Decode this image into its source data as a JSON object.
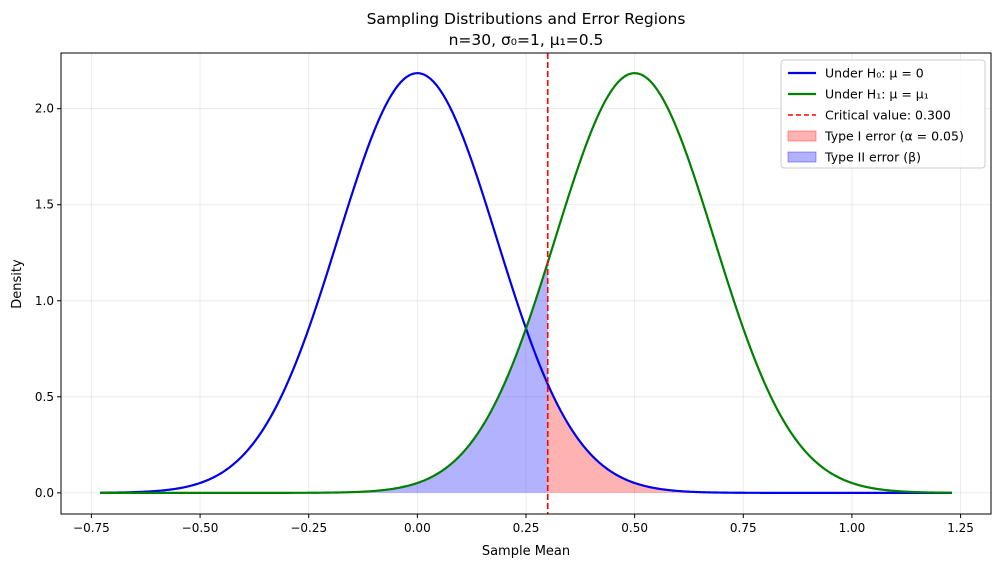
{
  "chart_data": {
    "type": "line",
    "title": "Sampling Distributions and Error Regions",
    "subtitle": "n=30, σ₀=1, μ₁=0.5",
    "xlabel": "Sample Mean",
    "ylabel": "Density",
    "xlim": [
      -0.82,
      1.32
    ],
    "ylim": [
      -0.11,
      2.29
    ],
    "x_ticks": [
      -0.75,
      -0.5,
      -0.25,
      0.0,
      0.25,
      0.5,
      0.75,
      1.0,
      1.25
    ],
    "x_tick_labels": [
      "−0.75",
      "−0.50",
      "−0.25",
      "0.00",
      "0.25",
      "0.50",
      "0.75",
      "1.00",
      "1.25"
    ],
    "y_ticks": [
      0.0,
      0.5,
      1.0,
      1.5,
      2.0
    ],
    "y_tick_labels": [
      "0.0",
      "0.5",
      "1.0",
      "1.5",
      "2.0"
    ],
    "grid": true,
    "legend_position": "top-right",
    "x_range": [
      -0.73,
      1.23
    ],
    "sample_size": 30,
    "sigma": 1,
    "series": [
      {
        "name": "Under H₀: μ = 0",
        "kind": "normal_pdf",
        "mean": 0.0,
        "color": "#0000ee"
      },
      {
        "name": "Under H₁: μ = μ₁",
        "kind": "normal_pdf",
        "mean": 0.5,
        "color": "#008000"
      }
    ],
    "critical_line": {
      "name": "Critical value: 0.300",
      "x": 0.3,
      "color": "#ff0000"
    },
    "regions": [
      {
        "name": "Type I error (α = 0.05)",
        "under": "H0",
        "from": 0.3,
        "to": 1.23,
        "color": "#ff0000",
        "alpha": 0.3
      },
      {
        "name": "Type II error (β)",
        "under": "H1",
        "from": -0.73,
        "to": 0.3,
        "color": "#0000ff",
        "alpha": 0.3
      }
    ]
  }
}
